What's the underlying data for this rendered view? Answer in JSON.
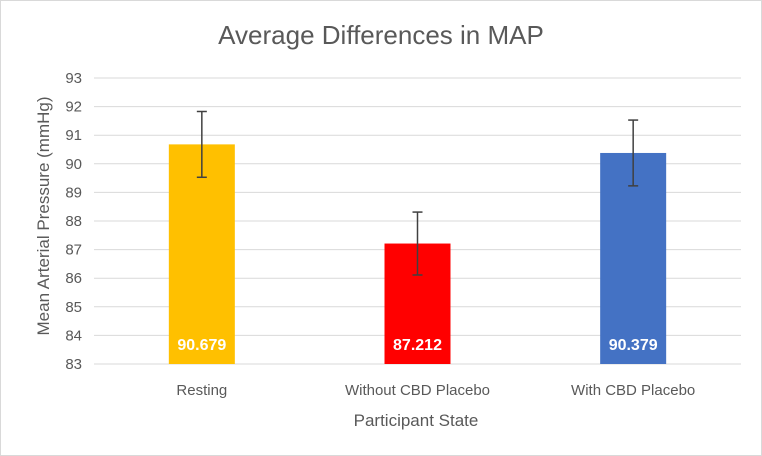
{
  "chart_data": {
    "type": "bar",
    "title": "Average Differences in MAP",
    "xlabel": "Participant State",
    "ylabel": "Mean Arterial Pressure (mmHg)",
    "ylim": [
      83,
      93
    ],
    "yticks": [
      "83",
      "84",
      "85",
      "86",
      "87",
      "88",
      "89",
      "90",
      "91",
      "92",
      "93"
    ],
    "grid": true,
    "categories": [
      "Resting",
      "Without CBD Placebo",
      "With CBD Placebo"
    ],
    "values": [
      90.679,
      87.212,
      90.379
    ],
    "data_labels": [
      "90.679",
      "87.212",
      "90.379"
    ],
    "error": [
      1.15,
      1.1,
      1.15
    ],
    "colors": [
      "#ffc000",
      "#ff0000",
      "#4472c4"
    ]
  }
}
